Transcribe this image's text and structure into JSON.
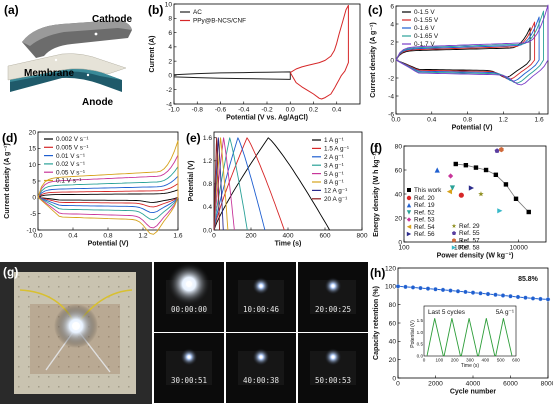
{
  "panels": {
    "a": {
      "label": "(a)",
      "cathode_label": "Cathode",
      "membrane_label": "Membrane",
      "anode_label": "Anode"
    },
    "b": {
      "label": "(b)",
      "chart_data": {
        "type": "line",
        "xlabel": "Potential (V vs. Ag/AgCl)",
        "ylabel": "Current (A)",
        "xlim": [
          -1.0,
          0.6
        ],
        "ylim": [
          -4,
          10
        ],
        "xticks": [
          "-1.0",
          "-0.8",
          "-0.6",
          "-0.4",
          "-0.2",
          "0.0",
          "0.2",
          "0.4"
        ],
        "yticks": [
          "-4",
          "-2",
          "0",
          "2",
          "4",
          "6",
          "8",
          "10"
        ],
        "legend_position": "top-left",
        "series": [
          {
            "name": "AC",
            "color": "#222222",
            "x": [
              -1.0,
              -0.8,
              -0.6,
              -0.4,
              -0.2,
              0.0,
              0.0,
              -0.2,
              -0.4,
              -0.6,
              -0.8,
              -1.0
            ],
            "y": [
              0.1,
              0.25,
              0.35,
              0.4,
              0.45,
              0.5,
              -0.55,
              -0.5,
              -0.45,
              -0.4,
              -0.3,
              -0.2
            ]
          },
          {
            "name": "PPy@B-NCS/CNF",
            "color": "#d62728",
            "x": [
              0.0,
              0.05,
              0.1,
              0.15,
              0.2,
              0.25,
              0.3,
              0.35,
              0.38,
              0.4,
              0.42,
              0.45,
              0.48,
              0.5,
              0.5,
              0.47,
              0.44,
              0.42,
              0.4,
              0.38,
              0.35,
              0.3,
              0.27,
              0.25,
              0.2,
              0.15,
              0.1,
              0.05,
              0.0
            ],
            "y": [
              0.4,
              0.9,
              1.2,
              1.4,
              1.6,
              1.8,
              2.1,
              2.7,
              3.5,
              4.5,
              5.8,
              7.5,
              9.2,
              9.8,
              1.8,
              0.6,
              0.0,
              -0.6,
              -1.2,
              -1.8,
              -2.6,
              -3.1,
              -3.3,
              -3.2,
              -2.6,
              -2.1,
              -1.6,
              -1.0,
              0.4
            ]
          }
        ]
      }
    },
    "c": {
      "label": "(c)",
      "chart_data": {
        "type": "line",
        "xlabel": "Potential (V)",
        "ylabel": "Current density (A g⁻¹)",
        "xlim": [
          0.0,
          1.7
        ],
        "ylim": [
          -6,
          6
        ],
        "xticks": [
          "0.0",
          "0.4",
          "0.8",
          "1.2",
          "1.6"
        ],
        "yticks": [
          "-6",
          "-4",
          "-2",
          "0",
          "2",
          "4",
          "6"
        ],
        "legend_position": "top-left",
        "series": [
          {
            "name": "0-1.5 V",
            "color": "#000000",
            "vmax": 1.5,
            "amp": 1.0,
            "peak": 3.2
          },
          {
            "name": "0-1.55 V",
            "color": "#d62728",
            "vmax": 1.55,
            "amp": 1.1,
            "peak": 3.8
          },
          {
            "name": "0-1.6 V",
            "color": "#1f5fd0",
            "vmax": 1.6,
            "amp": 1.2,
            "peak": 4.3
          },
          {
            "name": "0-1.65 V",
            "color": "#2aa198",
            "vmax": 1.65,
            "amp": 1.3,
            "peak": 4.9
          },
          {
            "name": "0-1.7 V",
            "color": "#7a3cc8",
            "vmax": 1.7,
            "amp": 1.4,
            "peak": 5.5
          }
        ]
      }
    },
    "d": {
      "label": "(d)",
      "chart_data": {
        "type": "line",
        "xlabel": "Potential (V)",
        "ylabel": "Current density (A g⁻¹)",
        "xlim": [
          0.0,
          1.6
        ],
        "ylim": [
          -10,
          20
        ],
        "xticks": [
          "0.0",
          "0.4",
          "0.8",
          "1.2",
          "1.6"
        ],
        "yticks": [
          "-10",
          "-5",
          "0",
          "5",
          "10",
          "15",
          "20"
        ],
        "legend_position": "top-left",
        "series": [
          {
            "name": "0.002 V s⁻¹",
            "color": "#000000",
            "amp": 0.8,
            "peak": 2.0
          },
          {
            "name": "0.005 V s⁻¹",
            "color": "#d62728",
            "amp": 1.5,
            "peak": 3.6
          },
          {
            "name": "0.01 V s⁻¹",
            "color": "#1f5fd0",
            "amp": 2.4,
            "peak": 5.5
          },
          {
            "name": "0.02 V s⁻¹",
            "color": "#2aa198",
            "amp": 3.5,
            "peak": 8.0
          },
          {
            "name": "0.05 V s⁻¹",
            "color": "#c8369a",
            "amp": 4.8,
            "peak": 11.0
          },
          {
            "name": "0.1 V s⁻¹",
            "color": "#d6a21c",
            "amp": 5.8,
            "peak": 15.0
          }
        ]
      }
    },
    "e": {
      "label": "(e)",
      "chart_data": {
        "type": "line",
        "xlabel": "Time (s)",
        "ylabel": "Potential (V)",
        "xlim": [
          0,
          800
        ],
        "ylim": [
          0.0,
          1.7
        ],
        "xticks": [
          "0",
          "200",
          "400",
          "600",
          "800"
        ],
        "yticks": [
          "0.0",
          "0.4",
          "0.8",
          "1.2",
          "1.6"
        ],
        "legend_position": "top-right",
        "series": [
          {
            "name": "1 A g⁻¹",
            "color": "#000000",
            "t_end": 625
          },
          {
            "name": "1.5 A g⁻¹",
            "color": "#d62728",
            "t_end": 380
          },
          {
            "name": "2 A g⁻¹",
            "color": "#1f5fd0",
            "t_end": 275
          },
          {
            "name": "3 A g⁻¹",
            "color": "#2aa198",
            "t_end": 180
          },
          {
            "name": "5 A g⁻¹",
            "color": "#c8369a",
            "t_end": 110
          },
          {
            "name": "8 A g⁻¹",
            "color": "#d6a21c",
            "t_end": 75
          },
          {
            "name": "12 A g⁻¹",
            "color": "#2c2c8c",
            "t_end": 50
          },
          {
            "name": "20 A g⁻¹",
            "color": "#8b1a1a",
            "t_end": 30
          }
        ]
      }
    },
    "f": {
      "label": "(f)",
      "chart_data": {
        "type": "scatter",
        "xlabel": "Power density (W kg⁻¹)",
        "ylabel": "Energy density (W h kg⁻¹)",
        "xscale": "log",
        "xlim": [
          100,
          30000
        ],
        "ylim": [
          0,
          80
        ],
        "xticks": [
          "100",
          "1000",
          "10000"
        ],
        "yticks": [
          "0",
          "20",
          "40",
          "60",
          "80"
        ],
        "legend_position": "bottom-left",
        "this_work": {
          "name": "This work",
          "color": "#000000",
          "x": [
            800,
            1200,
            1800,
            2700,
            4000,
            6000,
            9000,
            15000
          ],
          "y": [
            65,
            64,
            62,
            60,
            56,
            48,
            36,
            25
          ]
        },
        "refs": [
          {
            "name": "Ref. 20",
            "color": "#d62728",
            "shape": "circle",
            "x": 1000,
            "y": 39
          },
          {
            "name": "Ref. 19",
            "color": "#1f5fd0",
            "shape": "triangle-up",
            "x": 380,
            "y": 60
          },
          {
            "name": "Ref. 52",
            "color": "#2aa198",
            "shape": "triangle-down",
            "x": 700,
            "y": 45
          },
          {
            "name": "Ref. 53",
            "color": "#c8369a",
            "shape": "diamond",
            "x": 650,
            "y": 55
          },
          {
            "name": "Ref. 54",
            "color": "#d6a21c",
            "shape": "triangle-left",
            "x": 620,
            "y": 42
          },
          {
            "name": "Ref. 56",
            "color": "#2c2c8c",
            "shape": "triangle-right",
            "x": 1500,
            "y": 45
          },
          {
            "name": "Ref. 29",
            "color": "#8f8f20",
            "shape": "star",
            "x": 2200,
            "y": 40
          },
          {
            "name": "Ref. 55",
            "color": "#5a3ea0",
            "shape": "pentagon",
            "x": 4200,
            "y": 76
          },
          {
            "name": "Ref. 57",
            "color": "#d06a3b",
            "shape": "hexagon",
            "x": 5000,
            "y": 77
          },
          {
            "name": "Ref. 58",
            "color": "#37b8c8",
            "shape": "triangle-right",
            "x": 4700,
            "y": 26
          }
        ]
      }
    },
    "g": {
      "label": "(g)",
      "timers": [
        "00:00:00",
        "10:00:46",
        "20:00:25",
        "30:00:51",
        "40:00:38",
        "50:00:53"
      ]
    },
    "h": {
      "label": "(h)",
      "annotation": "85.8%",
      "inset_title": "Last 5 cycles",
      "inset_rate": "5A g⁻¹",
      "inset_ylabel": "Potential (V)",
      "inset_xlabel": "Time (s)",
      "inset_xticks": [
        "0",
        "100",
        "200",
        "300",
        "400",
        "500",
        "600"
      ],
      "inset_yticks": [
        "0.0",
        "0.5",
        "1.0",
        "1.5"
      ],
      "chart_data": {
        "type": "line",
        "xlabel": "Cycle number",
        "ylabel": "Capacity retention (%)",
        "xlim": [
          0,
          8000
        ],
        "ylim": [
          0,
          120
        ],
        "xticks": [
          "0",
          "2000",
          "4000",
          "6000",
          "8000"
        ],
        "yticks": [
          "0",
          "20",
          "40",
          "60",
          "80",
          "100",
          "120"
        ],
        "series": [
          {
            "name": "",
            "color": "#1f5fd0",
            "x": [
              0,
              400,
              800,
              1200,
              1600,
              2000,
              2400,
              2800,
              3200,
              3600,
              4000,
              4400,
              4800,
              5200,
              5600,
              6000,
              6400,
              6800,
              7200,
              7600,
              8000
            ],
            "y": [
              100,
              99.4,
              98.8,
              98.1,
              97.5,
              96.8,
              96.1,
              95.4,
              94.6,
              93.9,
              93.1,
              92.4,
              91.6,
              90.8,
              90.0,
              89.2,
              88.4,
              87.6,
              86.8,
              86.2,
              85.8
            ]
          }
        ]
      }
    }
  }
}
